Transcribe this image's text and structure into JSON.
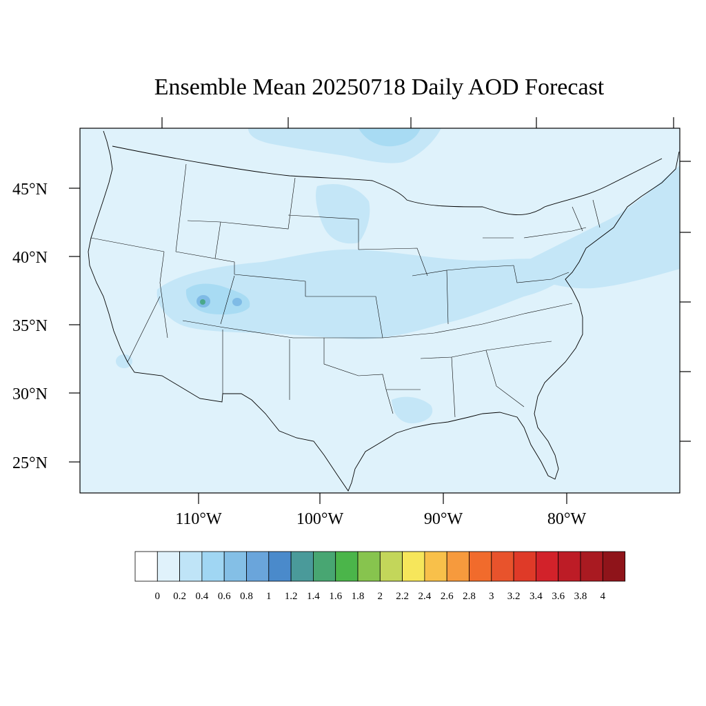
{
  "title": "Ensemble Mean 20250718 Daily AOD Forecast",
  "map": {
    "latitude_labels": [
      "45°N",
      "40°N",
      "35°N",
      "30°N",
      "25°N"
    ],
    "longitude_labels": [
      "110°W",
      "100°W",
      "90°W",
      "80°W"
    ],
    "background_fill_color": "#dff2fb",
    "plume_colors": {
      "light": "#c4e6f7",
      "medium": "#a8dbf3",
      "hotspot_inner": "#7fbbe6",
      "hotspot_core": "#4aa88a"
    }
  },
  "colorbar": {
    "labels": [
      "0",
      "0.2",
      "0.4",
      "0.6",
      "0.8",
      "1",
      "1.2",
      "1.4",
      "1.6",
      "1.8",
      "2",
      "2.2",
      "2.4",
      "2.6",
      "2.8",
      "3",
      "3.2",
      "3.4",
      "3.6",
      "3.8",
      "4"
    ],
    "colors": [
      "#ffffff",
      "#e0f2fb",
      "#bfe4f7",
      "#a0d6f3",
      "#84bfe6",
      "#6aa5db",
      "#4a8acb",
      "#4a9a9a",
      "#48a672",
      "#4bb54a",
      "#87c44e",
      "#c3d65a",
      "#f6e65b",
      "#f8c04a",
      "#f69a3d",
      "#f16b2c",
      "#e8532c",
      "#df3a28",
      "#d2222a",
      "#bd1c26",
      "#a91a21",
      "#8f141a"
    ]
  }
}
